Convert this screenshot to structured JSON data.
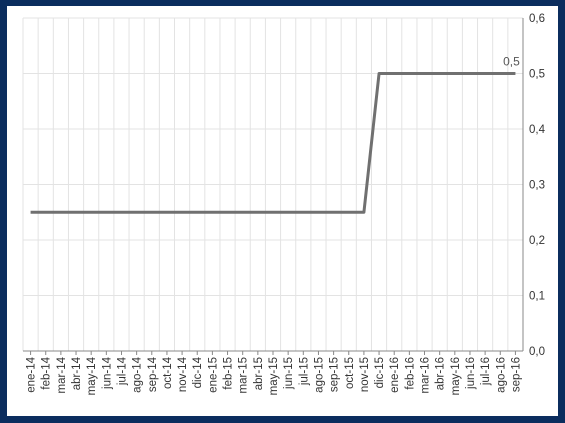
{
  "chart_data": {
    "type": "line",
    "title": "",
    "xlabel": "",
    "ylabel": "",
    "ylim": [
      0,
      0.6
    ],
    "y_ticks": [
      "0,0",
      "0,1",
      "0,2",
      "0,3",
      "0,4",
      "0,5",
      "0,6"
    ],
    "y_axis_side": "right",
    "grid": true,
    "legend": "none",
    "categories": [
      "ene-14",
      "feb-14",
      "mar-14",
      "abr-14",
      "may-14",
      "jun-14",
      "jul-14",
      "ago-14",
      "sep-14",
      "oct-14",
      "nov-14",
      "dic-14",
      "ene-15",
      "feb-15",
      "mar-15",
      "abr-15",
      "may-15",
      "jun-15",
      "jul-15",
      "ago-15",
      "sep-15",
      "oct-15",
      "nov-15",
      "dic-15",
      "ene-16",
      "feb-16",
      "mar-16",
      "abr-16",
      "may-16",
      "jun-16",
      "jul-16",
      "ago-16",
      "sep-16"
    ],
    "series": [
      {
        "color": "#707070",
        "values": [
          0.25,
          0.25,
          0.25,
          0.25,
          0.25,
          0.25,
          0.25,
          0.25,
          0.25,
          0.25,
          0.25,
          0.25,
          0.25,
          0.25,
          0.25,
          0.25,
          0.25,
          0.25,
          0.25,
          0.25,
          0.25,
          0.25,
          0.25,
          0.5,
          0.5,
          0.5,
          0.5,
          0.5,
          0.5,
          0.5,
          0.5,
          0.5,
          0.5
        ]
      }
    ],
    "annotations": [
      {
        "category": "sep-16",
        "value": 0.5,
        "text": "0,5"
      }
    ]
  }
}
